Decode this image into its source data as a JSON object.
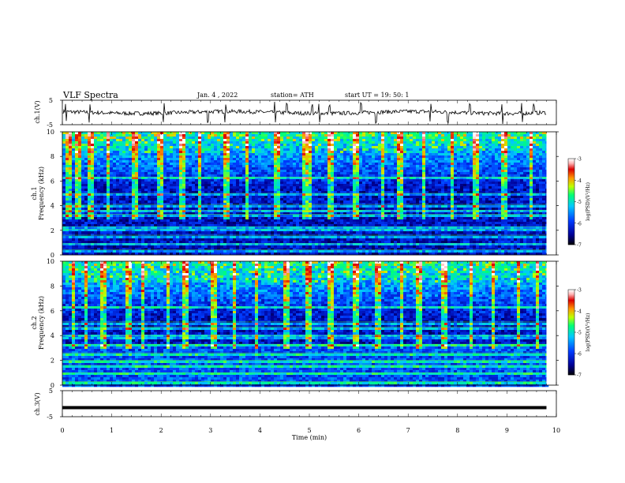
{
  "header": {
    "title": "VLF  Spectra",
    "date": "Jan. 4  , 2022",
    "station": "station= ATH",
    "start": "start  UT  =   19: 50: 1"
  },
  "chart_data": [
    {
      "type": "line",
      "name": "ch1-voltage",
      "ylabel": "ch.1(V)",
      "ylim": [
        -5,
        5
      ],
      "yticks": [
        5,
        -5
      ],
      "x_range_min": [
        0,
        9.8
      ],
      "baseline_V": 0,
      "spikes_min": [
        0.07,
        0.55,
        2.05,
        2.95,
        3.3,
        4.3,
        4.55,
        5.05,
        5.2,
        5.4,
        6.05,
        6.35,
        7.45,
        7.8,
        8.25,
        8.9,
        9.3,
        9.55
      ],
      "color": "#000000"
    },
    {
      "type": "heatmap",
      "name": "ch2-spectrogram",
      "ylabel": "ch.1\nFrequency (kHz)",
      "ylabel_lines": [
        "ch.1",
        "Frequency (kHz)"
      ],
      "ylim": [
        0,
        10
      ],
      "yticks": [
        0,
        2,
        4,
        6,
        8,
        10
      ],
      "x_range_min": [
        0,
        9.8
      ],
      "colorbar": {
        "label": "log(PSD)(V²/Hz)",
        "ticks": [
          -3,
          -4,
          -5,
          -6,
          -7
        ],
        "range": [
          -7,
          -3
        ],
        "colors": [
          "#000000",
          "#0000b4",
          "#0050ff",
          "#00c8ff",
          "#00ff80",
          "#c8ff00",
          "#ff8c00",
          "#e00000",
          "#ffb4b4",
          "#ffffff"
        ]
      },
      "bands_kHz": [
        0.4,
        0.9,
        1.6,
        2.1,
        2.3,
        3.3,
        3.6,
        4.1,
        5.0,
        6.3
      ],
      "sferics_min": [
        0.1,
        0.3,
        0.55,
        0.9,
        1.45,
        1.95,
        2.4,
        2.75,
        3.3,
        3.7,
        4.3,
        4.9,
        5.0,
        5.4,
        5.9,
        6.45,
        6.8,
        7.3,
        7.85,
        8.35,
        8.9,
        9.45
      ]
    },
    {
      "type": "heatmap",
      "name": "ch3-spectrogram",
      "ylabel": "ch.2\nFrequency (kHz)",
      "ylabel_lines": [
        "ch.2",
        "Frequency (kHz)"
      ],
      "ylim": [
        0,
        10
      ],
      "yticks": [
        0,
        2,
        4,
        6,
        8,
        10
      ],
      "x_range_min": [
        0,
        9.8
      ],
      "colorbar": {
        "label": "log(PSD)(V²/Hz)",
        "ticks": [
          -3,
          -4,
          -5,
          -6,
          -7
        ],
        "range": [
          -7,
          -3
        ]
      },
      "bands_kHz": [
        0.3,
        1.0,
        1.6,
        2.0,
        2.6,
        3.3,
        4.0,
        4.7,
        5.1,
        6.3
      ],
      "sferics_min": [
        0.2,
        0.45,
        0.8,
        1.3,
        1.6,
        2.1,
        2.45,
        3.05,
        3.45,
        3.9,
        4.5,
        4.95,
        5.4,
        5.9,
        6.35,
        6.85,
        7.2,
        7.7,
        8.25,
        8.7,
        9.2,
        9.6
      ]
    },
    {
      "type": "line",
      "name": "ch3-voltage",
      "ylabel": "ch.3(V)",
      "ylim": [
        -5,
        5
      ],
      "yticks": [
        5,
        -5
      ],
      "x_range_min": [
        0,
        9.8
      ],
      "value_V": -1.5,
      "color": "#000000"
    }
  ],
  "xaxis": {
    "label": "Time  (min)",
    "ticks": [
      0,
      1,
      2,
      3,
      4,
      5,
      6,
      7,
      8,
      9,
      10
    ],
    "xlim": [
      0,
      10
    ]
  }
}
